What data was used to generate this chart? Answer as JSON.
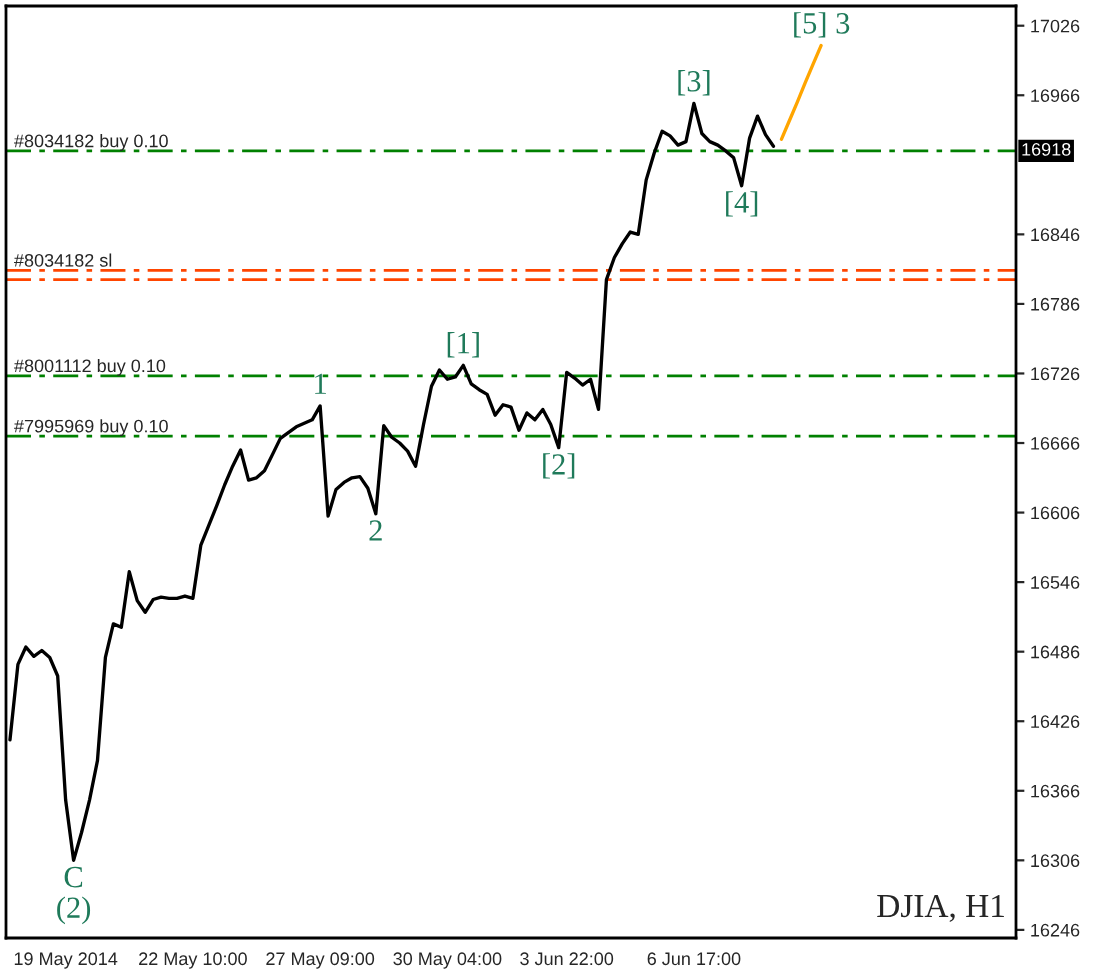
{
  "chart_data": {
    "type": "line",
    "categories": [
      null,
      null,
      null,
      null,
      null,
      null,
      null,
      "19 May 2014",
      null,
      null,
      null,
      null,
      null,
      null,
      null,
      null,
      null,
      null,
      null,
      null,
      null,
      null,
      null,
      "22 May 10:00",
      null,
      null,
      null,
      null,
      null,
      null,
      null,
      null,
      null,
      null,
      null,
      null,
      null,
      null,
      null,
      "27 May 09:00",
      null,
      null,
      null,
      null,
      null,
      null,
      null,
      null,
      null,
      null,
      null,
      null,
      null,
      null,
      null,
      "30 May 04:00",
      null,
      null,
      null,
      null,
      null,
      null,
      null,
      null,
      null,
      null,
      null,
      null,
      null,
      null,
      "3 Jun 22:00",
      null,
      null,
      null,
      null,
      null,
      null,
      null,
      null,
      null,
      null,
      null,
      null,
      null,
      null,
      null,
      "6 Jun 17:00",
      null,
      null,
      null,
      null,
      null,
      null,
      null,
      null,
      null,
      null,
      null,
      null,
      null,
      null,
      null,
      null,
      null,
      null,
      null,
      null,
      null,
      null,
      null,
      null,
      null,
      null,
      null,
      null,
      null,
      null,
      null,
      null,
      null,
      null,
      null,
      null,
      null,
      null,
      null,
      null
    ],
    "series": [
      {
        "color": "#000000",
        "values": [
          16410,
          16475,
          16490,
          16482,
          16487,
          16481,
          16465,
          16358,
          16306,
          16330,
          16358,
          16392,
          16481,
          16510,
          16507,
          16555,
          16530,
          16520,
          16531,
          16533,
          16532,
          16532,
          16534,
          16532,
          16578,
          16595,
          16612,
          16630,
          16646,
          16660,
          16634,
          16636,
          16642,
          16656,
          16670,
          16675,
          16680,
          16683,
          16686,
          16698,
          16603,
          16626,
          16632,
          16636,
          16637,
          16627,
          16605,
          16681,
          16671,
          16666,
          16659,
          16646,
          16682,
          16715,
          16729,
          16721,
          16723,
          16733,
          16717,
          16712,
          16708,
          16690,
          16699,
          16697,
          16677,
          16692,
          16686,
          16695,
          16682,
          16662,
          16727,
          16722,
          16716,
          16721,
          16695,
          16807,
          16826,
          16838,
          16848,
          16846,
          16893,
          16916,
          16935,
          16931,
          16923,
          16926,
          16959,
          16933,
          16926,
          16923,
          16918,
          16912,
          16888,
          16929,
          16948,
          16932,
          16922,
          null,
          null,
          null,
          null,
          null,
          null,
          null,
          null,
          null,
          null,
          null,
          null,
          null,
          null,
          null,
          null,
          null,
          null,
          null,
          null,
          null,
          null,
          null,
          null,
          null,
          null,
          null,
          null,
          null,
          null
        ]
      },
      {
        "color": "#ffa500",
        "values": [
          null,
          null,
          null,
          null,
          null,
          null,
          null,
          null,
          null,
          null,
          null,
          null,
          null,
          null,
          null,
          null,
          null,
          null,
          null,
          null,
          null,
          null,
          null,
          null,
          null,
          null,
          null,
          null,
          null,
          null,
          null,
          null,
          null,
          null,
          null,
          null,
          null,
          null,
          null,
          null,
          null,
          null,
          null,
          null,
          null,
          null,
          null,
          null,
          null,
          null,
          null,
          null,
          null,
          null,
          null,
          null,
          null,
          null,
          null,
          null,
          null,
          null,
          null,
          null,
          null,
          null,
          null,
          null,
          null,
          null,
          null,
          null,
          null,
          null,
          null,
          null,
          null,
          null,
          null,
          null,
          null,
          null,
          null,
          null,
          null,
          null,
          null,
          null,
          null,
          null,
          null,
          null,
          null,
          null,
          null,
          null,
          null,
          16928,
          16944,
          16960,
          16977,
          16993,
          17009,
          null,
          null,
          null,
          null,
          null,
          null,
          null,
          null,
          null,
          null,
          null,
          null,
          null,
          null,
          null,
          null,
          null,
          null,
          null,
          null,
          null,
          null,
          null,
          null
        ]
      }
    ],
    "ylim": [
      16239,
      17043
    ],
    "yticks": [
      17026,
      16966,
      16846,
      16786,
      16726,
      16666,
      16606,
      16546,
      16486,
      16426,
      16366,
      16306,
      16246
    ],
    "ref_lines": [
      {
        "axis": "y",
        "value": 16918,
        "label": "#8034182 buy 0.10",
        "color": "#008000",
        "line_style": "dashed"
      },
      {
        "axis": "y",
        "value": 16815,
        "label": "#8034182 sl",
        "color": "#ff4500",
        "line_style": "dashed"
      },
      {
        "axis": "y",
        "value": 16807,
        "label": null,
        "color": "#ff4500",
        "line_style": "dashed"
      },
      {
        "axis": "y",
        "value": 16724,
        "label": "#8001112 buy 0.10",
        "color": "#008000",
        "line_style": "dashed"
      },
      {
        "axis": "y",
        "value": 16672,
        "label": "#7995969 buy 0.10",
        "color": "#008000",
        "line_style": "dashed"
      }
    ],
    "annotations": [
      {
        "text": "[1]",
        "y": 16733
      },
      {
        "text": "1",
        "y": 16698
      },
      {
        "text": "2",
        "y": 16605
      },
      {
        "text": "[2]",
        "y": 16662
      },
      {
        "text": "[3]",
        "y": 16959
      },
      {
        "text": "[4]",
        "y": 16888
      },
      {
        "text": "[5] 3",
        "y": 17009
      },
      {
        "text": "C",
        "y": 16306
      },
      {
        "text": "(2)",
        "y": 16306
      },
      {
        "text": "16918",
        "y": 16918
      },
      "DJIA, H1"
    ],
    "grid": false,
    "legend": false
  }
}
